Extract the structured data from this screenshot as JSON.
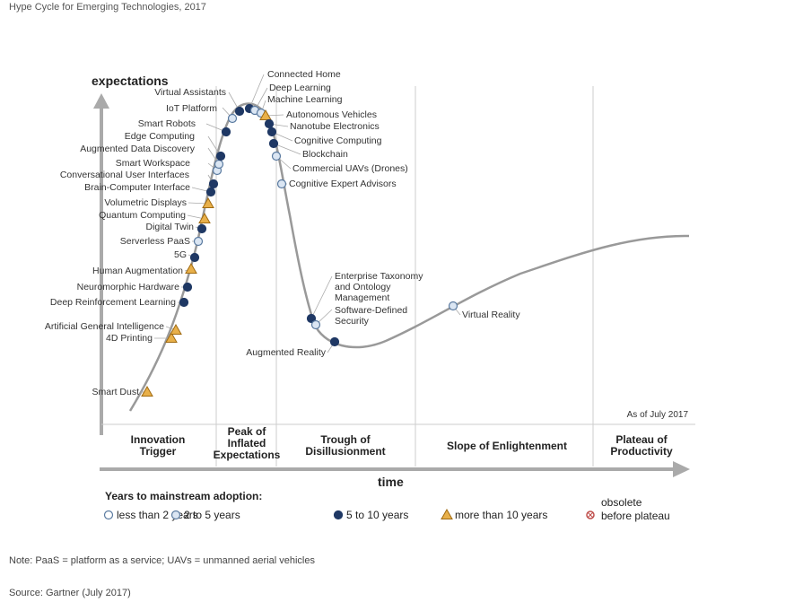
{
  "title": "Hype Cycle for Emerging Technologies, 2017",
  "as_of": "As of July 2017",
  "note": "Note: PaaS = platform as a service; UAVs = unmanned aerial vehicles",
  "source": "Source: Gartner (July 2017)",
  "colors": {
    "curve": "#999999",
    "dark": "#1f3864",
    "light_fill": "#dbe6f3",
    "white_fill": "#ffffff",
    "point_stroke": "#5a7aa0",
    "triangle_fill": "#e8b04a",
    "triangle_stroke": "#a06a10",
    "obsolete": "#c0504d"
  },
  "chart_data": {
    "type": "scatter",
    "xlabel": "time",
    "ylabel": "expectations",
    "phases": [
      [
        "Innovation",
        "Trigger"
      ],
      [
        "Peak of",
        "Inflated",
        "Expectations"
      ],
      [
        "Trough of",
        "Disillusionment"
      ],
      [
        "Slope of Enlightenment"
      ],
      [
        "Plateau of",
        "Productivity"
      ]
    ],
    "legend": {
      "title": "Years to mainstream adoption:",
      "items": [
        {
          "key": "lt2",
          "label": "less than 2 years"
        },
        {
          "key": "2to5",
          "label": "2 to 5 years"
        },
        {
          "key": "5to10",
          "label": "5 to 10 years"
        },
        {
          "key": "gt10",
          "label": "more than 10 years"
        },
        {
          "key": "obsolete",
          "label": [
            "obsolete",
            "before plateau"
          ]
        }
      ]
    },
    "technologies": [
      {
        "name": "Smart Dust",
        "category": "gt10"
      },
      {
        "name": "4D Printing",
        "category": "gt10"
      },
      {
        "name": "Artificial General Intelligence",
        "category": "gt10"
      },
      {
        "name": "Deep Reinforcement Learning",
        "category": "5to10"
      },
      {
        "name": "Neuromorphic Hardware",
        "category": "5to10"
      },
      {
        "name": "Human Augmentation",
        "category": "gt10"
      },
      {
        "name": "5G",
        "category": "5to10"
      },
      {
        "name": "Serverless PaaS",
        "category": "2to5"
      },
      {
        "name": "Digital Twin",
        "category": "5to10"
      },
      {
        "name": "Quantum Computing",
        "category": "gt10"
      },
      {
        "name": "Volumetric Displays",
        "category": "gt10"
      },
      {
        "name": "Brain-Computer Interface",
        "category": "5to10"
      },
      {
        "name": "Conversational User Interfaces",
        "category": "5to10"
      },
      {
        "name": "Smart Workspace",
        "category": "2to5"
      },
      {
        "name": "Augmented Data Discovery",
        "category": "2to5"
      },
      {
        "name": "Edge Computing",
        "category": "5to10"
      },
      {
        "name": "Smart Robots",
        "category": "5to10"
      },
      {
        "name": "IoT Platform",
        "category": "2to5"
      },
      {
        "name": "Virtual Assistants",
        "category": "5to10"
      },
      {
        "name": "Connected Home",
        "category": "5to10"
      },
      {
        "name": "Deep Learning",
        "category": "2to5"
      },
      {
        "name": "Machine Learning",
        "category": "2to5"
      },
      {
        "name": "Autonomous Vehicles",
        "category": "gt10"
      },
      {
        "name": "Nanotube Electronics",
        "category": "5to10"
      },
      {
        "name": "Cognitive Computing",
        "category": "5to10"
      },
      {
        "name": "Blockchain",
        "category": "5to10"
      },
      {
        "name": "Commercial UAVs (Drones)",
        "category": "2to5"
      },
      {
        "name": "Cognitive Expert Advisors",
        "category": "2to5"
      },
      {
        "name": "Enterprise Taxonomy and Ontology Management",
        "category": "5to10"
      },
      {
        "name": "Software-Defined Security",
        "category": "2to5"
      },
      {
        "name": "Augmented Reality",
        "category": "5to10"
      },
      {
        "name": "Virtual Reality",
        "category": "2to5"
      }
    ]
  }
}
